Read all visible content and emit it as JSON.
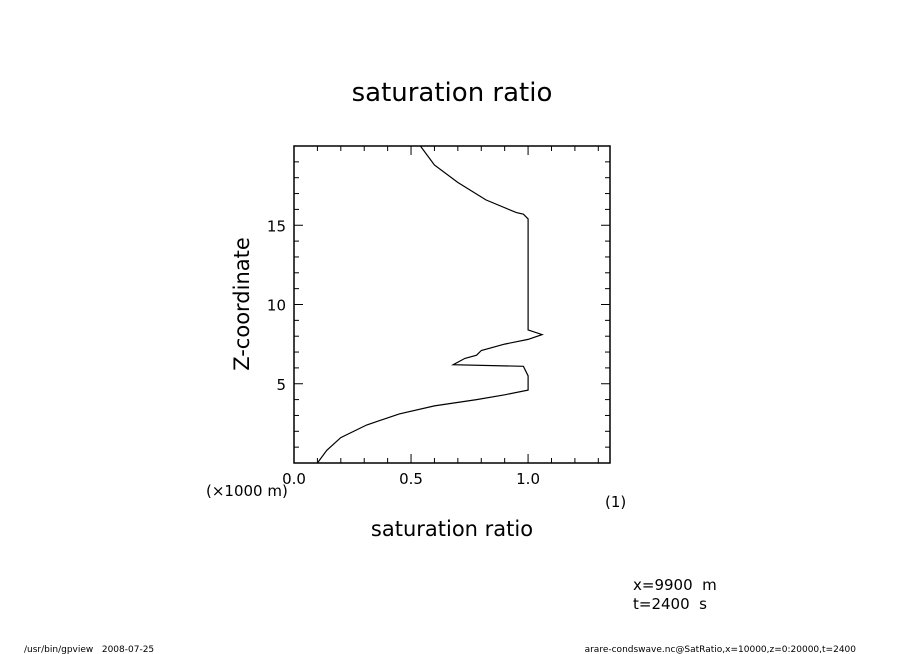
{
  "chart_data": {
    "type": "line",
    "title": "saturation ratio",
    "xlabel": "saturation ratio",
    "xunit": "(1)",
    "ylabel": "Z-coordinate",
    "yunit": "(×1000 m)",
    "xlim": [
      0,
      1.35
    ],
    "ylim": [
      0,
      20
    ],
    "xticks": [
      0.0,
      0.5,
      1.0
    ],
    "xtick_labels": [
      "0.0",
      "0.5",
      "1.0"
    ],
    "yticks": [
      5,
      10,
      15
    ],
    "ytick_labels": [
      "5",
      "10",
      "15"
    ],
    "grid": false,
    "series": [
      {
        "x": [
          0.1,
          0.14,
          0.2,
          0.31,
          0.45,
          0.6,
          0.78,
          0.9,
          1.0,
          1.0,
          1.0,
          0.98,
          0.68,
          0.73,
          0.78,
          0.8,
          0.9,
          1.0,
          1.06,
          1.0,
          1.0,
          1.0,
          0.98,
          0.95,
          0.82,
          0.7,
          0.6,
          0.54
        ],
        "y": [
          0.0,
          0.8,
          1.6,
          2.4,
          3.1,
          3.6,
          4.0,
          4.3,
          4.6,
          5.0,
          5.5,
          6.1,
          6.2,
          6.6,
          6.8,
          7.1,
          7.5,
          7.8,
          8.1,
          8.4,
          12.0,
          15.4,
          15.7,
          15.8,
          16.6,
          17.7,
          18.8,
          20.0
        ]
      }
    ]
  },
  "annotations": {
    "x_info": "x=9900  m",
    "t_info": "t=2400  s",
    "footer_left": "/usr/bin/gpview   2008-07-25",
    "footer_right": "arare-condswave.nc@SatRatio,x=10000,z=0:20000,t=2400"
  }
}
